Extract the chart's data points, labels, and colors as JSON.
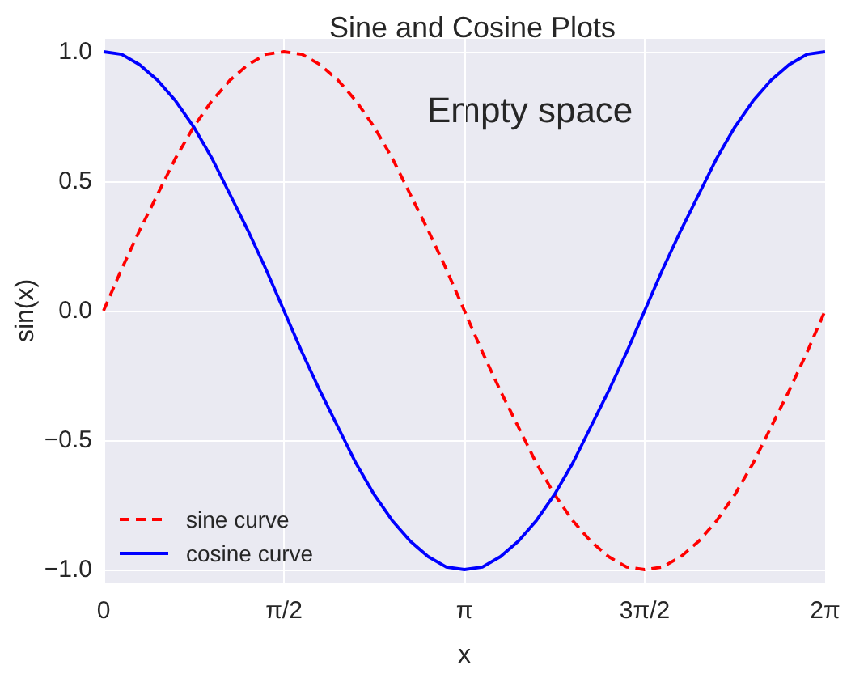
{
  "chart_data": {
    "type": "line",
    "title": "Sine and Cosine Plots",
    "xlabel": "x",
    "ylabel": "sin(x)",
    "annotations": [
      "Empty space"
    ],
    "x": [
      0,
      0.157,
      0.314,
      0.471,
      0.628,
      0.785,
      0.942,
      1.1,
      1.257,
      1.414,
      1.571,
      1.728,
      1.885,
      2.042,
      2.199,
      2.356,
      2.513,
      2.67,
      2.827,
      2.985,
      3.142,
      3.299,
      3.456,
      3.613,
      3.77,
      3.927,
      4.084,
      4.241,
      4.398,
      4.555,
      4.712,
      4.869,
      5.027,
      5.184,
      5.341,
      5.498,
      5.655,
      5.812,
      5.969,
      6.126,
      6.283
    ],
    "series": [
      {
        "name": "sine curve",
        "color": "#ff0000",
        "line_style": "dashed",
        "values": [
          0,
          0.16,
          0.31,
          0.45,
          0.59,
          0.71,
          0.81,
          0.89,
          0.95,
          0.99,
          1,
          0.99,
          0.95,
          0.89,
          0.81,
          0.71,
          0.59,
          0.45,
          0.31,
          0.16,
          0,
          -0.16,
          -0.31,
          -0.45,
          -0.59,
          -0.71,
          -0.81,
          -0.89,
          -0.95,
          -0.99,
          -1,
          -0.99,
          -0.95,
          -0.89,
          -0.81,
          -0.71,
          -0.59,
          -0.45,
          -0.31,
          -0.16,
          0
        ]
      },
      {
        "name": "cosine curve",
        "color": "#0000ff",
        "line_style": "solid",
        "values": [
          1,
          0.99,
          0.95,
          0.89,
          0.81,
          0.71,
          0.59,
          0.45,
          0.31,
          0.16,
          0,
          -0.16,
          -0.31,
          -0.45,
          -0.59,
          -0.71,
          -0.81,
          -0.89,
          -0.95,
          -0.99,
          -1,
          -0.99,
          -0.95,
          -0.89,
          -0.81,
          -0.71,
          -0.59,
          -0.45,
          -0.31,
          -0.16,
          0,
          0.16,
          0.31,
          0.45,
          0.59,
          0.71,
          0.81,
          0.89,
          0.95,
          0.99,
          1
        ]
      }
    ],
    "xlim": [
      0,
      6.2832
    ],
    "xticks": [
      0,
      {
        "value": 1.5708,
        "label": "π/2"
      },
      {
        "value": 3.1416,
        "label": "π"
      },
      {
        "value": 4.7124,
        "label": "3π/2"
      },
      {
        "value": 6.2832,
        "label": "2π"
      }
    ],
    "ylim": [
      -1.05,
      1.05
    ],
    "yticks": [
      {
        "value": -1,
        "label": "−1.0"
      },
      {
        "value": -0.5,
        "label": "−0.5"
      },
      {
        "value": 0,
        "label": "0.0"
      },
      {
        "value": 0.5,
        "label": "0.5"
      },
      {
        "value": 1,
        "label": "1.0"
      }
    ],
    "grid": true,
    "legend": "bottom left",
    "marker": "none"
  }
}
